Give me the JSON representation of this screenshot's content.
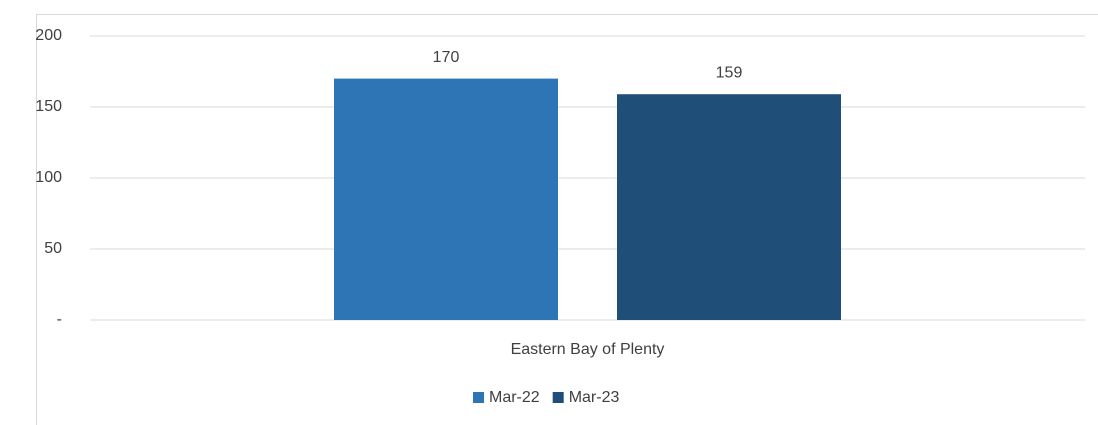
{
  "chart_data": {
    "type": "bar",
    "categories": [
      "Eastern Bay of Plenty"
    ],
    "series": [
      {
        "name": "Mar-22",
        "color": "#2e75b6",
        "values": [
          170
        ]
      },
      {
        "name": "Mar-23",
        "color": "#1f4e79",
        "values": [
          159
        ]
      }
    ],
    "ylim": [
      0,
      200
    ],
    "yticks": [
      {
        "value": 0,
        "label": "-"
      },
      50,
      100,
      150,
      200
    ],
    "grid": true,
    "legend": "bottom",
    "data_labels": true
  }
}
